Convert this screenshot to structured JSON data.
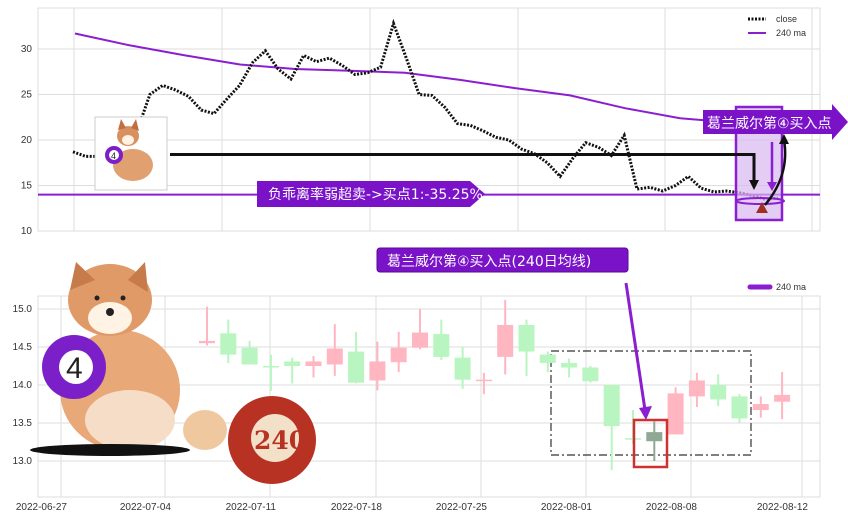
{
  "colors": {
    "up": "#ffb6c1",
    "down": "#b8f5c0",
    "highlight_candle": "#8fa896",
    "ma": "#8a1ed0",
    "close": "#111111",
    "banner": "#7a12c8",
    "red_box": "#d03030"
  },
  "chart_data": [
    {
      "type": "line",
      "title": "",
      "ylim": [
        10,
        34
      ],
      "yticks": [
        10,
        15,
        20,
        25,
        30
      ],
      "grid": true,
      "legend": {
        "placement": "top-right",
        "entries": [
          "close",
          "240 ma"
        ]
      },
      "series": [
        {
          "name": "close",
          "style": "dotted",
          "values": [
            18.7,
            18.2,
            18.2,
            18.5,
            19.5,
            21,
            25,
            26,
            25.5,
            24.8,
            23.3,
            22.9,
            24.5,
            26,
            28.5,
            29.8,
            27.8,
            26.7,
            29.3,
            28.6,
            29,
            28.2,
            27.2,
            27.4,
            28,
            32.8,
            29,
            25,
            24.9,
            23.6,
            21.8,
            21.6,
            21,
            20.3,
            20,
            19,
            18.5,
            17.5,
            16,
            18,
            19.7,
            19.2,
            18.3,
            20.5,
            14.6,
            14.8,
            14.4,
            15,
            16,
            14.7,
            14.3,
            14.4,
            14.2,
            13.9,
            13.5,
            13.6
          ]
        },
        {
          "name": "240 ma",
          "values": [
            31.7,
            30.4,
            29.3,
            28.3,
            27.8,
            27.6,
            27.4,
            26.6,
            25.7,
            24.9,
            23.5,
            22.4,
            21.9,
            21.6
          ]
        }
      ],
      "hline": 14,
      "annotations": {
        "bias_label": "负乖离率弱超卖->买点1:-35.25%",
        "buy_label": "葛兰威尔第④买入点",
        "arrow_level": 18.4
      }
    },
    {
      "type": "candlestick",
      "title": "葛兰威尔第④买入点(240日均线)",
      "ylim": [
        12.5,
        15.5
      ],
      "yticks": [
        "13.0",
        "13.5",
        "14.0",
        "14.5",
        "15.0"
      ],
      "xticks": [
        "2022-06-27",
        "2022-07-04",
        "2022-07-11",
        "2022-07-18",
        "2022-07-25",
        "2022-08-01",
        "2022-08-08",
        "2022-08-12"
      ],
      "grid": true,
      "legend": {
        "placement": "top-right",
        "entries": [
          "240 ma"
        ]
      },
      "highlight_index": 21,
      "candles": [
        {
          "o": 14.55,
          "h": 15.03,
          "l": 14.52,
          "c": 14.58
        },
        {
          "o": 14.68,
          "h": 14.86,
          "l": 14.29,
          "c": 14.4
        },
        {
          "o": 14.49,
          "h": 14.58,
          "l": 14.27,
          "c": 14.27
        },
        {
          "o": 14.25,
          "h": 14.4,
          "l": 13.92,
          "c": 14.24
        },
        {
          "o": 14.31,
          "h": 14.36,
          "l": 14.02,
          "c": 14.25
        },
        {
          "o": 14.25,
          "h": 14.38,
          "l": 14.1,
          "c": 14.31
        },
        {
          "o": 14.27,
          "h": 14.8,
          "l": 14.12,
          "c": 14.48
        },
        {
          "o": 14.44,
          "h": 14.7,
          "l": 14.02,
          "c": 14.03
        },
        {
          "o": 14.06,
          "h": 14.57,
          "l": 13.93,
          "c": 14.31
        },
        {
          "o": 14.3,
          "h": 14.7,
          "l": 14.17,
          "c": 14.49
        },
        {
          "o": 14.49,
          "h": 15.0,
          "l": 14.47,
          "c": 14.69
        },
        {
          "o": 14.67,
          "h": 14.86,
          "l": 14.33,
          "c": 14.37
        },
        {
          "o": 14.36,
          "h": 14.5,
          "l": 13.95,
          "c": 14.07
        },
        {
          "o": 14.06,
          "h": 14.16,
          "l": 13.88,
          "c": 14.07
        },
        {
          "o": 14.37,
          "h": 15.12,
          "l": 14.14,
          "c": 14.79
        },
        {
          "o": 14.79,
          "h": 14.86,
          "l": 14.12,
          "c": 14.44
        },
        {
          "o": 14.4,
          "h": 14.44,
          "l": 14.17,
          "c": 14.29
        },
        {
          "o": 14.29,
          "h": 14.35,
          "l": 14.1,
          "c": 14.23
        },
        {
          "o": 14.23,
          "h": 14.25,
          "l": 14.03,
          "c": 14.05
        },
        {
          "o": 14.0,
          "h": 14.0,
          "l": 12.88,
          "c": 13.46
        },
        {
          "o": 13.3,
          "h": 13.67,
          "l": 13.22,
          "c": 13.29
        },
        {
          "o": 13.38,
          "h": 13.52,
          "l": 13.0,
          "c": 13.26
        },
        {
          "o": 13.35,
          "h": 13.97,
          "l": 13.35,
          "c": 13.89
        },
        {
          "o": 13.85,
          "h": 14.16,
          "l": 13.71,
          "c": 14.06
        },
        {
          "o": 14.0,
          "h": 14.14,
          "l": 13.72,
          "c": 13.81
        },
        {
          "o": 13.85,
          "h": 13.88,
          "l": 13.5,
          "c": 13.56
        },
        {
          "o": 13.67,
          "h": 13.85,
          "l": 13.57,
          "c": 13.75
        },
        {
          "o": 13.78,
          "h": 14.17,
          "l": 13.55,
          "c": 13.87
        }
      ]
    }
  ],
  "images": {
    "small_ball_label": "4",
    "big_ball_label": "4",
    "red_ball_label": "240"
  }
}
